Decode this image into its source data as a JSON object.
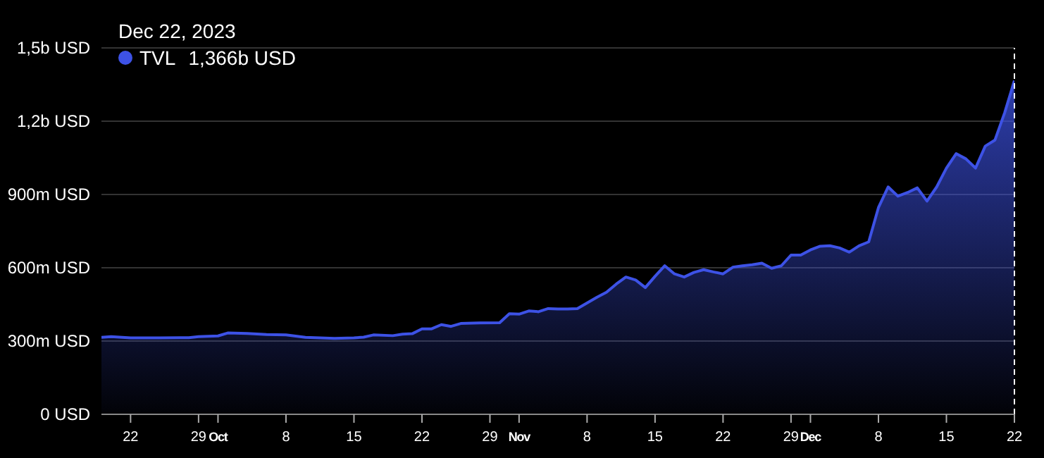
{
  "chart_data": {
    "type": "area",
    "x": [
      "2023-09-19",
      "2023-09-20",
      "2023-09-22",
      "2023-09-25",
      "2023-09-28",
      "2023-09-29",
      "2023-10-01",
      "2023-10-02",
      "2023-10-04",
      "2023-10-06",
      "2023-10-08",
      "2023-10-10",
      "2023-10-13",
      "2023-10-15",
      "2023-10-16",
      "2023-10-17",
      "2023-10-19",
      "2023-10-20",
      "2023-10-21",
      "2023-10-22",
      "2023-10-23",
      "2023-10-24",
      "2023-10-25",
      "2023-10-26",
      "2023-10-28",
      "2023-10-30",
      "2023-10-31",
      "2023-11-01",
      "2023-11-02",
      "2023-11-03",
      "2023-11-04",
      "2023-11-05",
      "2023-11-06",
      "2023-11-07",
      "2023-11-08",
      "2023-11-09",
      "2023-11-10",
      "2023-11-11",
      "2023-11-12",
      "2023-11-13",
      "2023-11-14",
      "2023-11-15",
      "2023-11-16",
      "2023-11-17",
      "2023-11-18",
      "2023-11-19",
      "2023-11-20",
      "2023-11-21",
      "2023-11-22",
      "2023-11-23",
      "2023-11-24",
      "2023-11-25",
      "2023-11-26",
      "2023-11-27",
      "2023-11-28",
      "2023-11-29",
      "2023-11-30",
      "2023-12-01",
      "2023-12-02",
      "2023-12-03",
      "2023-12-04",
      "2023-12-05",
      "2023-12-06",
      "2023-12-07",
      "2023-12-08",
      "2023-12-09",
      "2023-12-10",
      "2023-12-11",
      "2023-12-12",
      "2023-12-13",
      "2023-12-14",
      "2023-12-15",
      "2023-12-16",
      "2023-12-17",
      "2023-12-18",
      "2023-12-19",
      "2023-12-20",
      "2023-12-21",
      "2023-12-22"
    ],
    "series": [
      {
        "name": "TVL",
        "color": "#3d52e6",
        "values": [
          315000000,
          318000000,
          313000000,
          313000000,
          314000000,
          318000000,
          321000000,
          333000000,
          331000000,
          327000000,
          325000000,
          315000000,
          311000000,
          313000000,
          316000000,
          325000000,
          322000000,
          328000000,
          330000000,
          350000000,
          350000000,
          367000000,
          360000000,
          372000000,
          374000000,
          375000000,
          412000000,
          410000000,
          423000000,
          420000000,
          433000000,
          431000000,
          431000000,
          433000000,
          456000000,
          479000000,
          500000000,
          533000000,
          562000000,
          550000000,
          519000000,
          565000000,
          608000000,
          575000000,
          562000000,
          581000000,
          592000000,
          583000000,
          575000000,
          602000000,
          608000000,
          612000000,
          619000000,
          598000000,
          608000000,
          652000000,
          652000000,
          673000000,
          688000000,
          690000000,
          681000000,
          664000000,
          690000000,
          706000000,
          846000000,
          931000000,
          893000000,
          908000000,
          927000000,
          873000000,
          931000000,
          1008000000,
          1067000000,
          1046000000,
          1008000000,
          1098000000,
          1123000000,
          1235000000,
          1366000000
        ]
      }
    ],
    "xlim": [
      "2023-09-19",
      "2023-12-22"
    ],
    "xticks": [
      {
        "value": "2023-09-22",
        "label": "22"
      },
      {
        "value": "2023-09-29",
        "label": "29"
      },
      {
        "value": "2023-10-01",
        "label": "Oct"
      },
      {
        "value": "2023-10-08",
        "label": "8"
      },
      {
        "value": "2023-10-15",
        "label": "15"
      },
      {
        "value": "2023-10-22",
        "label": "22"
      },
      {
        "value": "2023-10-29",
        "label": "29"
      },
      {
        "value": "2023-11-01",
        "label": "Nov"
      },
      {
        "value": "2023-11-08",
        "label": "8"
      },
      {
        "value": "2023-11-15",
        "label": "15"
      },
      {
        "value": "2023-11-22",
        "label": "22"
      },
      {
        "value": "2023-11-29",
        "label": "29"
      },
      {
        "value": "2023-12-01",
        "label": "Dec"
      },
      {
        "value": "2023-12-08",
        "label": "8"
      },
      {
        "value": "2023-12-15",
        "label": "15"
      },
      {
        "value": "2023-12-22",
        "label": "22"
      }
    ],
    "ylim": [
      0,
      1500000000
    ],
    "yticks": [
      {
        "value": 0,
        "label": "0 USD"
      },
      {
        "value": 300000000,
        "label": "300m USD"
      },
      {
        "value": 600000000,
        "label": "600m USD"
      },
      {
        "value": 900000000,
        "label": "900m USD"
      },
      {
        "value": 1200000000,
        "label": "1,2b USD"
      },
      {
        "value": 1500000000,
        "label": "1,5b USD"
      }
    ],
    "ref_lines": [
      {
        "axis": "x",
        "value": "2023-12-22",
        "label": null,
        "color": "#ffffff",
        "line_style": "dashed"
      }
    ],
    "annotations": [
      "Dec 22, 2023",
      "1,366b USD"
    ],
    "grid": "y",
    "legend": "top left",
    "marker": "none",
    "line_style": "solid"
  }
}
